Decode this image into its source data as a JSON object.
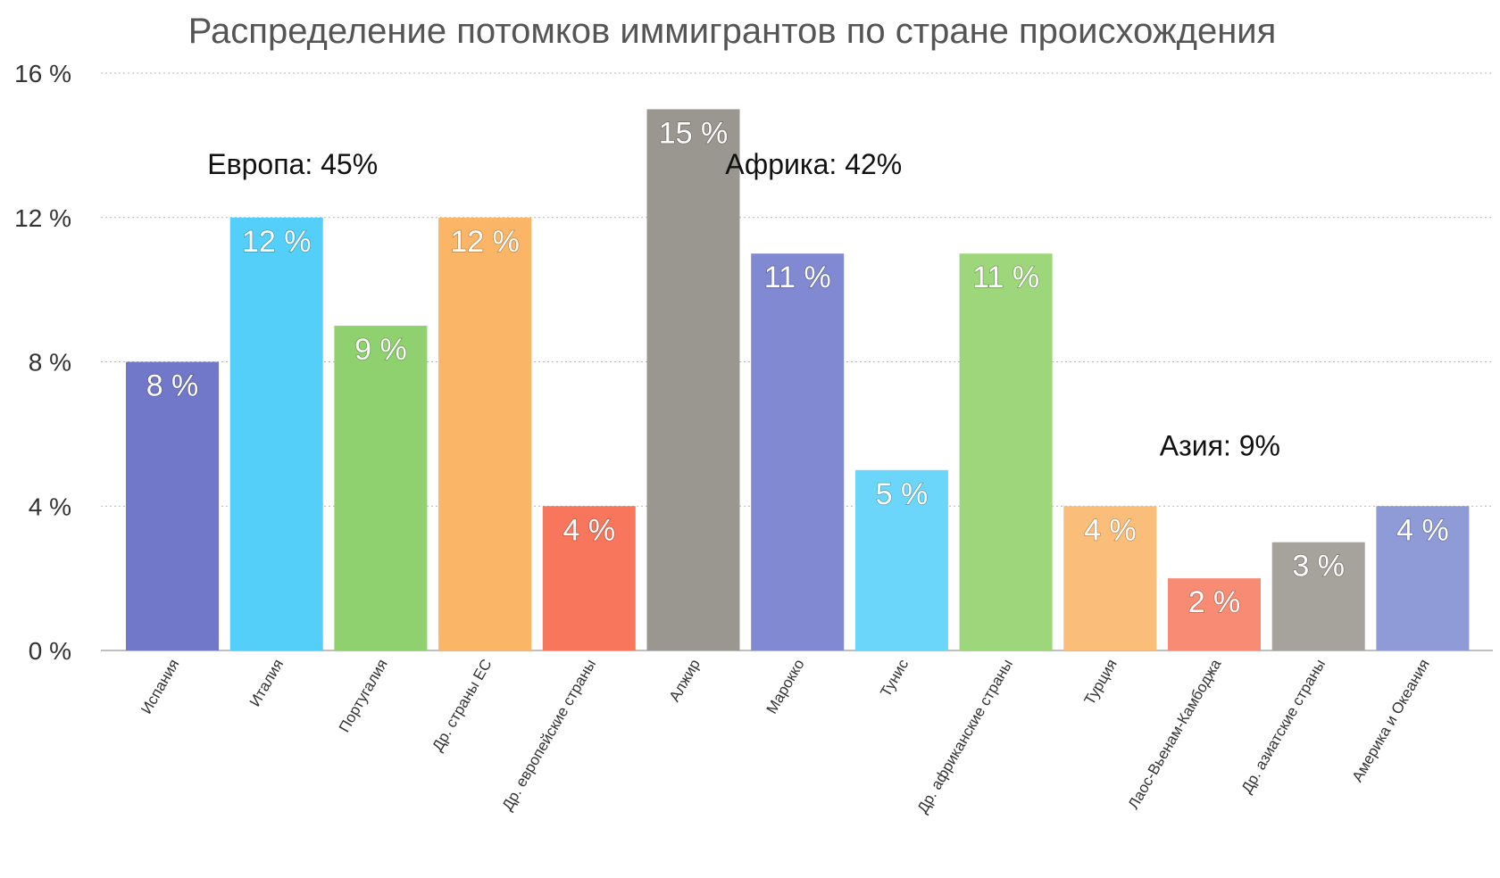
{
  "chart_data": {
    "type": "bar",
    "title": "Распределение потомков иммигрантов по стране происхождения",
    "xlabel": "",
    "ylabel": "",
    "ylim": [
      0,
      16
    ],
    "yticks": [
      0,
      4,
      8,
      12,
      16
    ],
    "ytick_labels": [
      "0 %",
      "4 %",
      "8 %",
      "12 %",
      "16 %"
    ],
    "grid": true,
    "categories": [
      "Испания",
      "Италия",
      "Португалия",
      "Др. страны ЕС",
      "Др. европейские страны",
      "Алжир",
      "Марокко",
      "Тунис",
      "Др. африканские страны",
      "Турция",
      "Лаос-Вьенам-Камбоджа",
      "Др. азиатские страны",
      "Америка и Океания"
    ],
    "values": [
      8,
      12,
      9,
      12,
      4,
      15,
      11,
      5,
      11,
      4,
      2,
      3,
      4
    ],
    "value_labels": [
      "8 %",
      "12 %",
      "9 %",
      "12 %",
      "4 %",
      "15 %",
      "11 %",
      "5 %",
      "11 %",
      "4 %",
      "2 %",
      "3 %",
      "4 %"
    ],
    "colors": [
      "#7278c9",
      "#54cffa",
      "#8fd16f",
      "#fbb567",
      "#f8775c",
      "#9a9790",
      "#8089d2",
      "#6cd6fa",
      "#9dd67b",
      "#fbbd7a",
      "#f88b74",
      "#a6a39c",
      "#8f9bd6"
    ],
    "annotations": [
      {
        "text": "Европа: 45%",
        "x_category": "Италия",
        "x_offset": 0.6,
        "y": 13.2
      },
      {
        "text": "Африка: 42%",
        "x_category": "Марокко",
        "x_offset": 0.6,
        "y": 13.2
      },
      {
        "text": "Азия: 9%",
        "x_category": "Лаос-Вьенам-Камбоджа",
        "x_offset": 0.5,
        "y": 5.4
      }
    ]
  }
}
